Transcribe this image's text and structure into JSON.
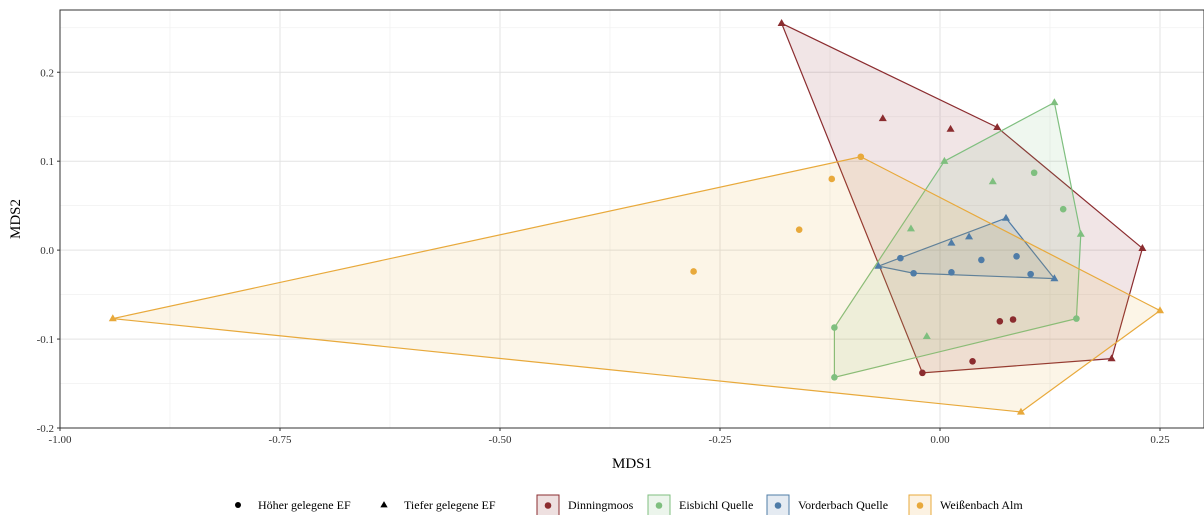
{
  "chart_data": {
    "type": "scatter",
    "title": "",
    "xlabel": "MDS1",
    "ylabel": "MDS2",
    "xlim": [
      -1.0,
      0.3
    ],
    "ylim": [
      -0.2,
      0.27
    ],
    "grid": true,
    "x_ticks": [
      {
        "value": -1.0,
        "label": "-1.00"
      },
      {
        "value": -0.75,
        "label": "-0.75"
      },
      {
        "value": -0.5,
        "label": "-0.50"
      },
      {
        "value": -0.25,
        "label": "-0.25"
      },
      {
        "value": 0.0,
        "label": "0.00"
      },
      {
        "value": 0.25,
        "label": "0.25"
      }
    ],
    "y_ticks": [
      {
        "value": -0.2,
        "label": "-0.2"
      },
      {
        "value": -0.1,
        "label": "-0.1"
      },
      {
        "value": 0.0,
        "label": "0.0"
      },
      {
        "value": 0.1,
        "label": "0.1"
      },
      {
        "value": 0.2,
        "label": "0.2"
      }
    ],
    "shape_legend": [
      {
        "shape": "circle",
        "label": "Höher gelegene EF"
      },
      {
        "shape": "triangle",
        "label": "Tiefer gelegene EF"
      }
    ],
    "legend_position": "bottom",
    "series": [
      {
        "name": "Dinningmoos",
        "color": "#8B2C2F",
        "hull": [
          [
            -0.18,
            0.255
          ],
          [
            0.065,
            0.138
          ],
          [
            0.23,
            0.002
          ],
          [
            0.195,
            -0.122
          ],
          [
            -0.02,
            -0.138
          ]
        ],
        "points": [
          {
            "x": -0.18,
            "y": 0.255,
            "shape": "triangle"
          },
          {
            "x": -0.065,
            "y": 0.148,
            "shape": "triangle"
          },
          {
            "x": 0.012,
            "y": 0.136,
            "shape": "triangle"
          },
          {
            "x": 0.065,
            "y": 0.138,
            "shape": "triangle"
          },
          {
            "x": 0.23,
            "y": 0.002,
            "shape": "triangle"
          },
          {
            "x": 0.195,
            "y": -0.122,
            "shape": "triangle"
          },
          {
            "x": -0.02,
            "y": -0.138,
            "shape": "circle"
          },
          {
            "x": 0.037,
            "y": -0.125,
            "shape": "circle"
          },
          {
            "x": 0.068,
            "y": -0.08,
            "shape": "circle"
          },
          {
            "x": 0.083,
            "y": -0.078,
            "shape": "circle"
          }
        ]
      },
      {
        "name": "Eisbichl Quelle",
        "color": "#7FBF7F",
        "hull": [
          [
            0.005,
            0.1
          ],
          [
            0.13,
            0.166
          ],
          [
            0.16,
            0.018
          ],
          [
            0.155,
            -0.077
          ],
          [
            -0.12,
            -0.143
          ],
          [
            -0.12,
            -0.087
          ]
        ],
        "points": [
          {
            "x": 0.13,
            "y": 0.166,
            "shape": "triangle"
          },
          {
            "x": 0.005,
            "y": 0.1,
            "shape": "triangle"
          },
          {
            "x": 0.06,
            "y": 0.077,
            "shape": "triangle"
          },
          {
            "x": -0.033,
            "y": 0.024,
            "shape": "triangle"
          },
          {
            "x": 0.16,
            "y": 0.018,
            "shape": "triangle"
          },
          {
            "x": -0.015,
            "y": -0.097,
            "shape": "triangle"
          },
          {
            "x": 0.107,
            "y": 0.087,
            "shape": "circle"
          },
          {
            "x": 0.14,
            "y": 0.046,
            "shape": "circle"
          },
          {
            "x": 0.155,
            "y": -0.077,
            "shape": "circle"
          },
          {
            "x": -0.12,
            "y": -0.087,
            "shape": "circle"
          },
          {
            "x": -0.12,
            "y": -0.143,
            "shape": "circle"
          }
        ]
      },
      {
        "name": "Vorderbach Quelle",
        "color": "#4F7CA7",
        "hull": [
          [
            -0.07,
            -0.018
          ],
          [
            0.075,
            0.036
          ],
          [
            0.13,
            -0.032
          ],
          [
            -0.03,
            -0.026
          ]
        ],
        "points": [
          {
            "x": 0.075,
            "y": 0.036,
            "shape": "triangle"
          },
          {
            "x": 0.033,
            "y": 0.015,
            "shape": "triangle"
          },
          {
            "x": 0.013,
            "y": 0.008,
            "shape": "triangle"
          },
          {
            "x": -0.07,
            "y": -0.018,
            "shape": "triangle"
          },
          {
            "x": 0.13,
            "y": -0.032,
            "shape": "triangle"
          },
          {
            "x": -0.045,
            "y": -0.009,
            "shape": "circle"
          },
          {
            "x": 0.047,
            "y": -0.011,
            "shape": "circle"
          },
          {
            "x": 0.087,
            "y": -0.007,
            "shape": "circle"
          },
          {
            "x": -0.03,
            "y": -0.026,
            "shape": "circle"
          },
          {
            "x": 0.013,
            "y": -0.025,
            "shape": "circle"
          },
          {
            "x": 0.103,
            "y": -0.027,
            "shape": "circle"
          }
        ]
      },
      {
        "name": "Weißenbach Alm",
        "color": "#E8A93B",
        "hull": [
          [
            -0.94,
            -0.077
          ],
          [
            -0.09,
            0.105
          ],
          [
            0.25,
            -0.068
          ],
          [
            0.092,
            -0.182
          ]
        ],
        "points": [
          {
            "x": -0.94,
            "y": -0.077,
            "shape": "triangle"
          },
          {
            "x": 0.25,
            "y": -0.068,
            "shape": "triangle"
          },
          {
            "x": 0.092,
            "y": -0.182,
            "shape": "triangle"
          },
          {
            "x": -0.09,
            "y": 0.105,
            "shape": "circle"
          },
          {
            "x": -0.123,
            "y": 0.08,
            "shape": "circle"
          },
          {
            "x": -0.16,
            "y": 0.023,
            "shape": "circle"
          },
          {
            "x": -0.28,
            "y": -0.024,
            "shape": "circle"
          }
        ]
      }
    ]
  }
}
